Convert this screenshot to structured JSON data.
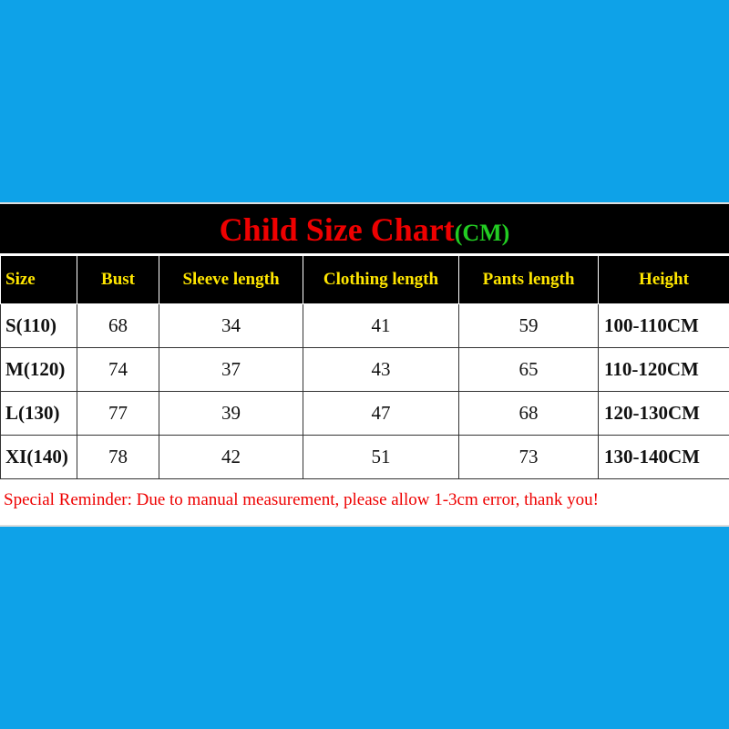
{
  "title": {
    "main": "Child Size Chart",
    "unit": "(CM)"
  },
  "table": {
    "header": [
      "Size",
      "Bust",
      "Sleeve length",
      "Clothing length",
      "Pants length",
      "Height"
    ],
    "rows": [
      [
        "S(110)",
        "68",
        "34",
        "41",
        "59",
        "100-110CM"
      ],
      [
        "M(120)",
        "74",
        "37",
        "43",
        "65",
        "110-120CM"
      ],
      [
        "L(130)",
        "77",
        "39",
        "47",
        "68",
        "120-130CM"
      ],
      [
        "XI(140)",
        "78",
        "42",
        "51",
        "73",
        "130-140CM"
      ]
    ]
  },
  "reminder": "Special Reminder: Due to manual measurement, please allow 1-3cm error, thank you!"
}
